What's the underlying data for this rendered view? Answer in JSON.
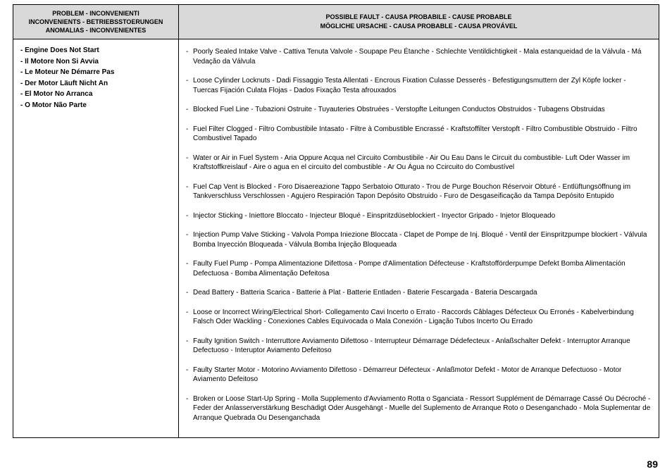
{
  "header": {
    "left": {
      "line1": "PROBLEM - INCONVENIENTI",
      "line2": "INCONVENIENTS - BETRIEBSSTOERUNGEN",
      "line3": "ANOMALIAS - INCONVENIENTES"
    },
    "right": {
      "line1": "POSSIBLE FAULT - CAUSA PROBABILE - CAUSE PROBABLE",
      "line2": "MÖGLICHE URSACHE - CAUSA PROBABLE - CAUSA PROVÁVEL"
    }
  },
  "problems": {
    "p1": "- Engine Does Not Start",
    "p2": "- Il Motore Non Si Avvia",
    "p3": "- Le Moteur Ne Démarre Pas",
    "p4": "- Der Motor Läuft Nicht An",
    "p5": "- El Motor No Arranca",
    "p6": "- O Motor Não Parte"
  },
  "faults": {
    "f0": "Poorly Sealed Intake Valve - Cattiva Tenuta Valvole - Soupape Peu Étanche - Schlechte Ventildichtigkeit - Mala estanqueidad de la Válvula - Má Vedação da Válvula",
    "f1": "Loose Cylinder Locknuts - Dadi Fissaggio Testa Allentati - Encrous Fixation Culasse Desserés - Befestigungsmuttern der Zyl Köpfe locker - Tuercas Fijación Culata Flojas - Dados Fixação Testa afrouxados",
    "f2": "Blocked Fuel Line - Tubazioni Ostruite - Tuyauteries Obstruées - Verstopfte Leitungen Conductos Obstruidos - Tubagens Obstruidas",
    "f3": "Fuel Filter Clogged - Filtro Combustibile Intasato - Filtre à Combustible Encrassé - Kraftstoffilter Verstopft - Filtro Combustible Obstruido - Filtro Combustivel Tapado",
    "f4": "Water or Air in Fuel System - Aria Oppure Acqua nel Circuito Combustibile - Air Ou Eau Dans le Circuit du combustible- Luft Oder Wasser im Kraftstoffkreislauf - Aire o agua en el circuito del combustible - Ar Ou Água no Ccircuito do Combustível",
    "f5": "Fuel Cap Vent is Blocked - Foro Disaereazione Tappo Serbatoio Otturato - Trou de Purge Bouchon Réservoir Obturé - Entlüftungsöffnung im Tankverschluss Verschlossen - Agujero Respiración Tapon Depósito Obstruido - Furo de Desgaseificação da Tampa Depósito Entupido",
    "f6": "Injector Sticking - Iniettore Bloccato - Injecteur Bloqué - Einspritzdüseblockiert -  Inyector Gripado - Injetor Bloqueado",
    "f7": "Injection Pump Valve Sticking - Valvola Pompa Iniezione Bloccata - Clapet de Pompe de Inj. Bloqué - Ventil der Einspritzpumpe blockiert - Válvula Bomba Inyección Bloqueada - Válvula Bomba Injeção Bloqueada",
    "f8": "Faulty Fuel Pump - Pompa Alimentazione Difettosa - Pompe d'Alimentation Défecteuse - Kraftstofförderpumpe Defekt Bomba Alimentación Defectuosa - Bomba Alimentação Defeitosa",
    "f9": "Dead Battery - Batteria Scarica - Batterie à Plat - Batterie Entladen - Baterie Fescargada - Bateria Descargada",
    "f10": "Loose or Incorrect Wiring/Electrical Short- Collegamento Cavi Incerto o Errato - Raccords Câblages Défecteux Ou Erronés - Kabelverbindung Falsch Oder Wackling - Conexiones Cables Equivocada o Mala Conexión - Ligação Tubos Incerto Ou Errado",
    "f11": "Faulty Ignition Switch - Interruttore Avviamento Difettoso - Interrupteur Démarrage Dédefecteux - Anlaßschalter Defekt - Interruptor Arranque Defectuoso - Interuptor Aviamento Defeitoso",
    "f12": "Faulty Starter Motor - Motorino Avviamento Difettoso - Démarreur Défecteux - Anlaßmotor Defekt - Motor de Arranque Defectuoso - Motor Aviamento Defeitoso",
    "f13": "Broken or Loose Start-Up Spring - Molla Supplemento d'Avviamento Rotta o Sganciata - Ressort Supplément de Démarrage Cassé Ou Décroché - Feder der Anlasserverstärkung Beschädigt Oder Ausgehängt -  Muelle del Suplemento de Arranque Roto o Desenganchado - Mola Suplementar de Arranque Quebrada Ou Desenganchada"
  },
  "pageNumber": "89"
}
